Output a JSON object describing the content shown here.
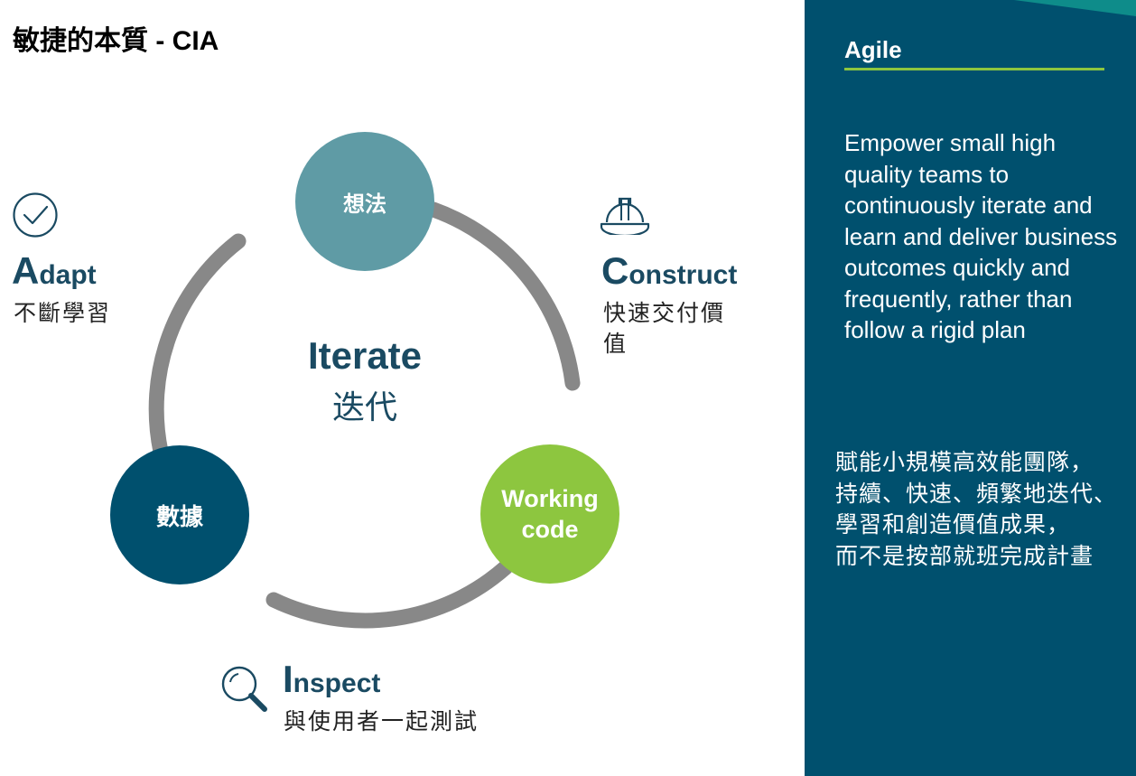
{
  "title": {
    "zh": "敏捷的本質",
    "en": " - CIA"
  },
  "diagram": {
    "center": {
      "en": "Iterate",
      "zh": "迭代"
    },
    "nodes": {
      "idea": {
        "label": "想法",
        "color": "#5f9ba5"
      },
      "data": {
        "label": "數據",
        "color": "#00506e"
      },
      "working": {
        "line1": "Working",
        "line2": "code",
        "color": "#8dc63f"
      }
    },
    "arc_color": "#888888"
  },
  "adapt": {
    "initial": "A",
    "rest": "dapt",
    "desc": "不斷學習",
    "icon": "checkmark-circle-icon"
  },
  "construct": {
    "initial": "C",
    "rest": "onstruct",
    "desc": "快速交付價值",
    "icon": "hard-hat-icon"
  },
  "inspect": {
    "initial": "I",
    "rest": "nspect",
    "desc": "與使用者一起測試",
    "icon": "magnifier-icon"
  },
  "panel": {
    "title": "Agile",
    "text_en": "Empower small high quality teams to continuously iterate and learn and deliver business outcomes quickly and frequently, rather than follow a rigid plan",
    "text_zh": "賦能小規模高效能團隊，\n持續、快速、頻繁地迭代、\n學習和創造價值成果，\n而不是按部就班完成計畫",
    "bg_color": "#00506e",
    "accent_color": "#8dc63f"
  }
}
